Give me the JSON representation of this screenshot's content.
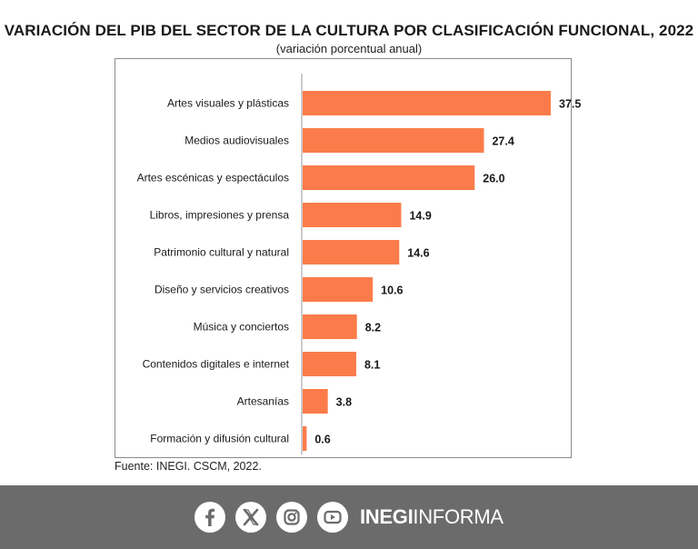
{
  "title": "VARIACIÓN DEL PIB DEL SECTOR DE LA CULTURA POR CLASIFICACIÓN FUNCIONAL, 2022",
  "subtitle": "(variación porcentual anual)",
  "source": "Fuente: INEGI. CSCM, 2022.",
  "colors": {
    "bar": "#fb7c4a",
    "axis": "#9a9a9a",
    "footer": "#6b6b6b"
  },
  "footer": {
    "icons": [
      "facebook-icon",
      "x-icon",
      "instagram-icon",
      "youtube-icon"
    ],
    "brand_bold": "INEGI",
    "brand_light": "INFORMA"
  },
  "chart_data": {
    "type": "bar",
    "orientation": "horizontal",
    "title": "VARIACIÓN DEL PIB DEL SECTOR DE LA CULTURA POR CLASIFICACIÓN FUNCIONAL, 2022",
    "subtitle": "(variación porcentual anual)",
    "categories": [
      "Artes visuales y plásticas",
      "Medios audiovisuales",
      "Artes escénicas y espectáculos",
      "Libros, impresiones y prensa",
      "Patrimonio cultural y natural",
      "Diseño y servicios creativos",
      "Música y conciertos",
      "Contenidos digitales e internet",
      "Artesanías",
      "Formación y difusión cultural"
    ],
    "values": [
      37.5,
      27.4,
      26.0,
      14.9,
      14.6,
      10.6,
      8.2,
      8.1,
      3.8,
      0.6
    ],
    "value_labels": [
      "37.5",
      "27.4",
      "26.0",
      "14.9",
      "14.6",
      "10.6",
      "8.2",
      "8.1",
      "3.8",
      "0.6"
    ],
    "xlim": [
      0,
      37.5
    ],
    "grid": false,
    "legend": "none"
  }
}
